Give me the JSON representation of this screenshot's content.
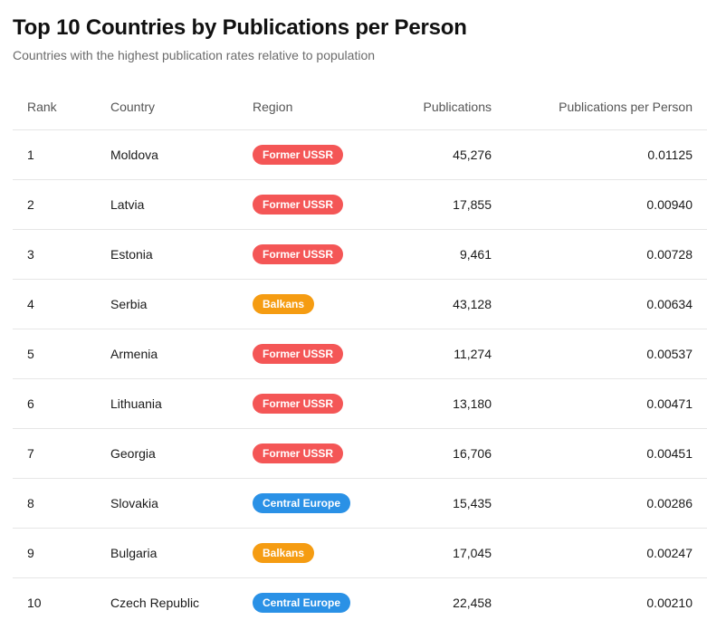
{
  "title": "Top 10 Countries by Publications per Person",
  "subtitle": "Countries with the highest publication rates relative to population",
  "region_colors": {
    "Former USSR": "#f45656",
    "Balkans": "#f59c12",
    "Central Europe": "#2a91e6"
  },
  "chart_data": {
    "type": "table",
    "columns": [
      "Rank",
      "Country",
      "Region",
      "Publications",
      "Publications per Person"
    ],
    "rows": [
      {
        "rank": "1",
        "country": "Moldova",
        "region": "Former USSR",
        "publications": "45,276",
        "per_person": "0.01125"
      },
      {
        "rank": "2",
        "country": "Latvia",
        "region": "Former USSR",
        "publications": "17,855",
        "per_person": "0.00940"
      },
      {
        "rank": "3",
        "country": "Estonia",
        "region": "Former USSR",
        "publications": "9,461",
        "per_person": "0.00728"
      },
      {
        "rank": "4",
        "country": "Serbia",
        "region": "Balkans",
        "publications": "43,128",
        "per_person": "0.00634"
      },
      {
        "rank": "5",
        "country": "Armenia",
        "region": "Former USSR",
        "publications": "11,274",
        "per_person": "0.00537"
      },
      {
        "rank": "6",
        "country": "Lithuania",
        "region": "Former USSR",
        "publications": "13,180",
        "per_person": "0.00471"
      },
      {
        "rank": "7",
        "country": "Georgia",
        "region": "Former USSR",
        "publications": "16,706",
        "per_person": "0.00451"
      },
      {
        "rank": "8",
        "country": "Slovakia",
        "region": "Central Europe",
        "publications": "15,435",
        "per_person": "0.00286"
      },
      {
        "rank": "9",
        "country": "Bulgaria",
        "region": "Balkans",
        "publications": "17,045",
        "per_person": "0.00247"
      },
      {
        "rank": "10",
        "country": "Czech Republic",
        "region": "Central Europe",
        "publications": "22,458",
        "per_person": "0.00210"
      }
    ]
  }
}
